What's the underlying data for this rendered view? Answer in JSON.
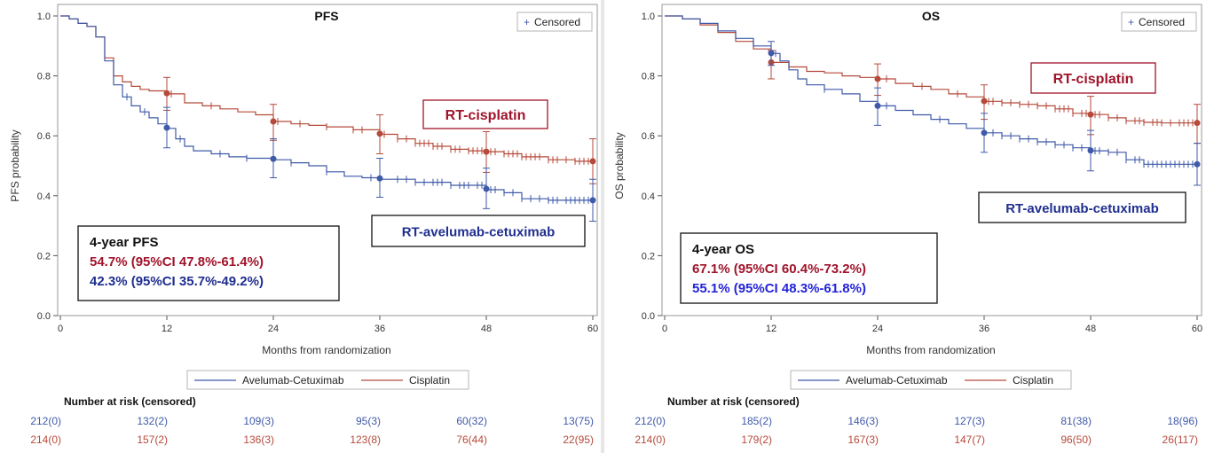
{
  "colors": {
    "blue": "#3F5AA8",
    "red": "#B54A3A",
    "box_red": "#A0132A",
    "box_blue": "#1F2E8F",
    "os_blue_text": "#2323D9"
  },
  "chart_data": [
    {
      "type": "line",
      "subtype": "kaplan-meier",
      "title": "PFS",
      "xlabel": "Months from randomization",
      "ylabel": "PFS probability",
      "xlim": [
        0,
        60
      ],
      "ylim": [
        0,
        1
      ],
      "xticks": [
        "0",
        "12",
        "24",
        "36",
        "48",
        "60"
      ],
      "yticks": [
        "0.0",
        "0.2",
        "0.4",
        "0.6",
        "0.8",
        "1.0"
      ],
      "censored_label": "Censored",
      "censored_symbol": "+",
      "legend": [
        "Avelumab-Cetuximab",
        "Cisplatin"
      ],
      "series": [
        {
          "name": "Avelumab-Cetuximab",
          "color_key": "blue",
          "curve": [
            [
              0,
              1.0
            ],
            [
              1,
              0.99
            ],
            [
              2,
              0.975
            ],
            [
              3,
              0.965
            ],
            [
              4,
              0.93
            ],
            [
              5,
              0.85
            ],
            [
              6,
              0.77
            ],
            [
              7,
              0.73
            ],
            [
              8,
              0.7
            ],
            [
              9,
              0.68
            ],
            [
              10,
              0.66
            ],
            [
              11,
              0.64
            ],
            [
              12,
              0.625
            ],
            [
              13,
              0.59
            ],
            [
              14,
              0.565
            ],
            [
              15,
              0.55
            ],
            [
              17,
              0.54
            ],
            [
              19,
              0.53
            ],
            [
              21,
              0.525
            ],
            [
              24,
              0.52
            ],
            [
              26,
              0.51
            ],
            [
              28,
              0.5
            ],
            [
              30,
              0.48
            ],
            [
              32,
              0.465
            ],
            [
              34,
              0.46
            ],
            [
              36,
              0.455
            ],
            [
              40,
              0.445
            ],
            [
              44,
              0.435
            ],
            [
              48,
              0.42
            ],
            [
              50,
              0.41
            ],
            [
              52,
              0.39
            ],
            [
              55,
              0.385
            ],
            [
              60,
              0.385
            ]
          ],
          "ci_points": [
            {
              "x": 12,
              "y": 0.627,
              "lo": 0.56,
              "hi": 0.695
            },
            {
              "x": 24,
              "y": 0.523,
              "lo": 0.46,
              "hi": 0.59
            },
            {
              "x": 36,
              "y": 0.458,
              "lo": 0.395,
              "hi": 0.525
            },
            {
              "x": 48,
              "y": 0.423,
              "lo": 0.357,
              "hi": 0.492
            },
            {
              "x": 60,
              "y": 0.385,
              "lo": 0.315,
              "hi": 0.455
            }
          ],
          "censor_x": [
            7.5,
            9.5,
            13.5,
            18,
            21,
            26,
            30,
            35,
            38,
            39,
            40,
            41,
            42,
            42.5,
            43,
            44,
            45,
            45.5,
            46,
            47,
            47.5,
            48.5,
            49,
            50,
            51,
            52,
            53,
            54,
            55,
            55.5,
            56,
            57,
            57.5,
            58,
            58.5,
            59,
            59.5
          ]
        },
        {
          "name": "Cisplatin",
          "color_key": "red",
          "curve": [
            [
              0,
              1.0
            ],
            [
              1,
              0.99
            ],
            [
              2,
              0.975
            ],
            [
              3,
              0.965
            ],
            [
              4,
              0.93
            ],
            [
              5,
              0.86
            ],
            [
              6,
              0.8
            ],
            [
              7,
              0.78
            ],
            [
              8,
              0.765
            ],
            [
              9,
              0.755
            ],
            [
              10,
              0.75
            ],
            [
              12,
              0.74
            ],
            [
              14,
              0.71
            ],
            [
              16,
              0.7
            ],
            [
              18,
              0.69
            ],
            [
              20,
              0.68
            ],
            [
              22,
              0.67
            ],
            [
              24,
              0.648
            ],
            [
              26,
              0.64
            ],
            [
              28,
              0.635
            ],
            [
              30,
              0.63
            ],
            [
              33,
              0.62
            ],
            [
              36,
              0.605
            ],
            [
              38,
              0.59
            ],
            [
              40,
              0.575
            ],
            [
              42,
              0.565
            ],
            [
              44,
              0.555
            ],
            [
              46,
              0.55
            ],
            [
              48,
              0.547
            ],
            [
              50,
              0.54
            ],
            [
              52,
              0.53
            ],
            [
              55,
              0.52
            ],
            [
              58,
              0.515
            ],
            [
              60,
              0.515
            ]
          ],
          "ci_points": [
            {
              "x": 12,
              "y": 0.742,
              "lo": 0.685,
              "hi": 0.795
            },
            {
              "x": 24,
              "y": 0.648,
              "lo": 0.585,
              "hi": 0.705
            },
            {
              "x": 36,
              "y": 0.607,
              "lo": 0.54,
              "hi": 0.67
            },
            {
              "x": 48,
              "y": 0.547,
              "lo": 0.478,
              "hi": 0.614
            },
            {
              "x": 60,
              "y": 0.515,
              "lo": 0.44,
              "hi": 0.59
            }
          ],
          "censor_x": [
            12.5,
            17,
            24.5,
            27,
            30,
            33,
            34,
            36.5,
            38,
            39,
            40,
            40.5,
            41,
            41.5,
            42,
            42.5,
            43,
            44,
            44.5,
            45,
            46,
            46.5,
            47,
            47.5,
            48.5,
            49,
            50,
            50.5,
            51,
            51.5,
            52,
            52.5,
            53,
            53.5,
            54,
            55,
            55.5,
            56,
            57,
            58,
            58.5,
            59,
            59.5
          ]
        }
      ],
      "labels": {
        "red": "RT-cisplatin",
        "blue": "RT-avelumab-cetuximab"
      },
      "summary": {
        "title": "4-year PFS",
        "red_line": "54.7% (95%CI 47.8%-61.4%)",
        "blue_line": "42.3% (95%CI 35.7%-49.2%)"
      },
      "risk_title": "Number at risk (censored)",
      "risk": {
        "blue": [
          "212(0)",
          "132(2)",
          "109(3)",
          "95(3)",
          "60(32)",
          "13(75)"
        ],
        "red": [
          "214(0)",
          "157(2)",
          "136(3)",
          "123(8)",
          "76(44)",
          "22(95)"
        ]
      }
    },
    {
      "type": "line",
      "subtype": "kaplan-meier",
      "title": "OS",
      "xlabel": "Months from randomization",
      "ylabel": "OS probability",
      "xlim": [
        0,
        60
      ],
      "ylim": [
        0,
        1
      ],
      "xticks": [
        "0",
        "12",
        "24",
        "36",
        "48",
        "60"
      ],
      "yticks": [
        "0.0",
        "0.2",
        "0.4",
        "0.6",
        "0.8",
        "1.0"
      ],
      "censored_label": "Censored",
      "censored_symbol": "+",
      "legend": [
        "Avelumab-Cetuximab",
        "Cisplatin"
      ],
      "series": [
        {
          "name": "Avelumab-Cetuximab",
          "color_key": "blue",
          "curve": [
            [
              0,
              1.0
            ],
            [
              2,
              0.99
            ],
            [
              4,
              0.975
            ],
            [
              6,
              0.95
            ],
            [
              8,
              0.925
            ],
            [
              10,
              0.9
            ],
            [
              12,
              0.875
            ],
            [
              13,
              0.85
            ],
            [
              14,
              0.82
            ],
            [
              15,
              0.79
            ],
            [
              16,
              0.77
            ],
            [
              18,
              0.755
            ],
            [
              20,
              0.74
            ],
            [
              22,
              0.715
            ],
            [
              24,
              0.7
            ],
            [
              26,
              0.685
            ],
            [
              28,
              0.67
            ],
            [
              30,
              0.655
            ],
            [
              32,
              0.64
            ],
            [
              34,
              0.625
            ],
            [
              36,
              0.61
            ],
            [
              38,
              0.6
            ],
            [
              40,
              0.59
            ],
            [
              42,
              0.58
            ],
            [
              44,
              0.57
            ],
            [
              46,
              0.56
            ],
            [
              48,
              0.55
            ],
            [
              50,
              0.545
            ],
            [
              52,
              0.52
            ],
            [
              54,
              0.505
            ],
            [
              56,
              0.505
            ],
            [
              60,
              0.505
            ]
          ],
          "ci_points": [
            {
              "x": 12,
              "y": 0.876,
              "lo": 0.835,
              "hi": 0.915
            },
            {
              "x": 24,
              "y": 0.7,
              "lo": 0.635,
              "hi": 0.76
            },
            {
              "x": 36,
              "y": 0.61,
              "lo": 0.545,
              "hi": 0.675
            },
            {
              "x": 48,
              "y": 0.551,
              "lo": 0.483,
              "hi": 0.618
            },
            {
              "x": 60,
              "y": 0.505,
              "lo": 0.435,
              "hi": 0.575
            }
          ],
          "censor_x": [
            12.5,
            18,
            25,
            31,
            37,
            38,
            39,
            40,
            41,
            42,
            43,
            44,
            45,
            46,
            47,
            48.5,
            49,
            50,
            51,
            52,
            53,
            53.5,
            54,
            54.5,
            55,
            55.5,
            56,
            56.5,
            57,
            57.5,
            58,
            58.5,
            59,
            59.5
          ]
        },
        {
          "name": "Cisplatin",
          "color_key": "red",
          "curve": [
            [
              0,
              1.0
            ],
            [
              2,
              0.99
            ],
            [
              4,
              0.97
            ],
            [
              6,
              0.945
            ],
            [
              8,
              0.915
            ],
            [
              10,
              0.89
            ],
            [
              12,
              0.845
            ],
            [
              14,
              0.83
            ],
            [
              16,
              0.815
            ],
            [
              18,
              0.81
            ],
            [
              20,
              0.8
            ],
            [
              22,
              0.795
            ],
            [
              24,
              0.79
            ],
            [
              26,
              0.775
            ],
            [
              28,
              0.765
            ],
            [
              30,
              0.755
            ],
            [
              32,
              0.74
            ],
            [
              34,
              0.73
            ],
            [
              36,
              0.715
            ],
            [
              38,
              0.71
            ],
            [
              40,
              0.705
            ],
            [
              42,
              0.7
            ],
            [
              44,
              0.69
            ],
            [
              46,
              0.675
            ],
            [
              48,
              0.671
            ],
            [
              50,
              0.66
            ],
            [
              52,
              0.65
            ],
            [
              54,
              0.645
            ],
            [
              56,
              0.643
            ],
            [
              60,
              0.643
            ]
          ],
          "ci_points": [
            {
              "x": 12,
              "y": 0.845,
              "lo": 0.79,
              "hi": 0.885
            },
            {
              "x": 24,
              "y": 0.79,
              "lo": 0.735,
              "hi": 0.84
            },
            {
              "x": 36,
              "y": 0.716,
              "lo": 0.655,
              "hi": 0.77
            },
            {
              "x": 48,
              "y": 0.671,
              "lo": 0.604,
              "hi": 0.732
            },
            {
              "x": 60,
              "y": 0.643,
              "lo": 0.575,
              "hi": 0.705
            }
          ],
          "censor_x": [
            25,
            29,
            33,
            36.5,
            37,
            38,
            39,
            40,
            41,
            42,
            43,
            44,
            44.5,
            45,
            45.5,
            46,
            47,
            47.5,
            48.5,
            49,
            50,
            51,
            52,
            53,
            53.5,
            54,
            55,
            55.5,
            56,
            57,
            58,
            58.5,
            59,
            59.5
          ]
        }
      ],
      "labels": {
        "red": "RT-cisplatin",
        "blue": "RT-avelumab-cetuximab"
      },
      "summary": {
        "title": "4-year OS",
        "red_line": "67.1% (95%CI 60.4%-73.2%)",
        "blue_line": "55.1% (95%CI 48.3%-61.8%)"
      },
      "risk_title": "Number at risk (censored)",
      "risk": {
        "blue": [
          "212(0)",
          "185(2)",
          "146(3)",
          "127(3)",
          "81(38)",
          "18(96)"
        ],
        "red": [
          "214(0)",
          "179(2)",
          "167(3)",
          "147(7)",
          "96(50)",
          "26(117)"
        ]
      }
    }
  ]
}
